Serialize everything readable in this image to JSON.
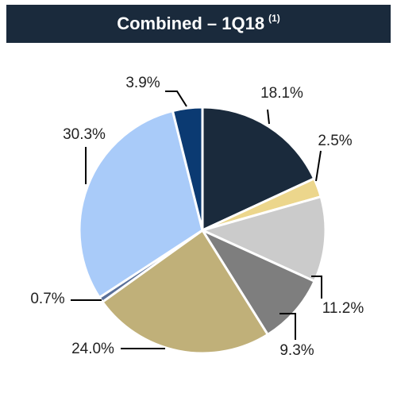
{
  "header": {
    "title": "Combined – 1Q18",
    "footnote": "(1)"
  },
  "chart_data": {
    "type": "pie",
    "title": "Combined – 1Q18 (1)",
    "slices": [
      {
        "value": 18.1,
        "label": "18.1%",
        "color": "#1a2a3c"
      },
      {
        "value": 2.5,
        "label": "2.5%",
        "color": "#ecd68c"
      },
      {
        "value": 11.2,
        "label": "11.2%",
        "color": "#cbcbcb"
      },
      {
        "value": 9.3,
        "label": "9.3%",
        "color": "#7e7e7e"
      },
      {
        "value": 24.0,
        "label": "24.0%",
        "color": "#c0b079"
      },
      {
        "value": 0.7,
        "label": "0.7%",
        "color": "#5a7099"
      },
      {
        "value": 30.3,
        "label": "30.3%",
        "color": "#a9cbf9"
      },
      {
        "value": 3.9,
        "label": "3.9%",
        "color": "#0b3a72"
      }
    ],
    "start_angle": "12 o'clock",
    "direction": "clockwise",
    "legend": "none"
  }
}
